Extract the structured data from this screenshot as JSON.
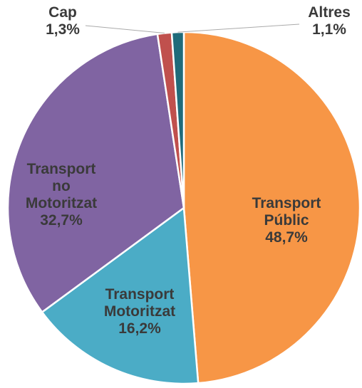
{
  "chart_data": {
    "type": "pie",
    "categories": [
      "Transport Públic",
      "Transport Motoritzat",
      "Transport no Motoritzat",
      "Cap",
      "Altres"
    ],
    "values": [
      48.7,
      16.2,
      32.7,
      1.3,
      1.1
    ],
    "value_labels": [
      "48,7%",
      "16,2%",
      "32,7%",
      "1,3%",
      "1,1%"
    ],
    "colors": [
      "#f79646",
      "#4bacc6",
      "#8064a2",
      "#c0504d",
      "#1f6b7a"
    ]
  }
}
